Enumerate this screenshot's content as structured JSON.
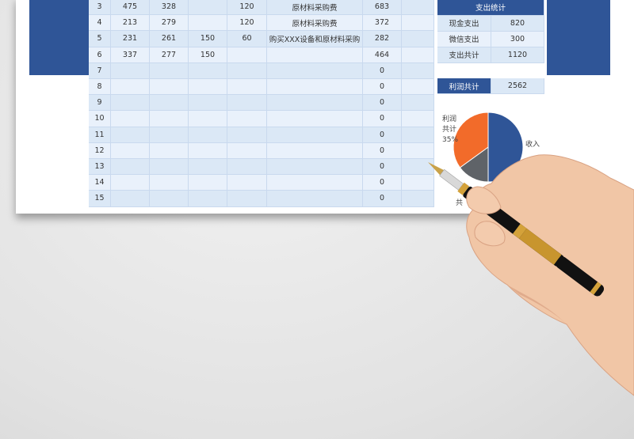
{
  "table": {
    "rows": [
      [
        3,
        475,
        328,
        null,
        120,
        "原材料采购费",
        683,
        null
      ],
      [
        4,
        213,
        279,
        null,
        120,
        "原材料采购费",
        372,
        null
      ],
      [
        5,
        231,
        261,
        150,
        60,
        "购买XXX设备和原材料采购",
        282,
        null
      ],
      [
        6,
        337,
        277,
        150,
        null,
        null,
        464,
        null
      ],
      [
        7,
        null,
        null,
        null,
        null,
        null,
        0,
        null
      ],
      [
        8,
        null,
        null,
        null,
        null,
        null,
        0,
        null
      ],
      [
        9,
        null,
        null,
        null,
        null,
        null,
        0,
        null
      ],
      [
        10,
        null,
        null,
        null,
        null,
        null,
        0,
        null
      ],
      [
        11,
        null,
        null,
        null,
        null,
        null,
        0,
        null
      ],
      [
        12,
        null,
        null,
        null,
        null,
        null,
        0,
        null
      ],
      [
        13,
        null,
        null,
        null,
        null,
        null,
        0,
        null
      ],
      [
        14,
        null,
        null,
        null,
        null,
        null,
        0,
        null
      ],
      [
        15,
        null,
        null,
        null,
        null,
        null,
        0,
        null
      ]
    ]
  },
  "expense_summary": {
    "title": "支出统计",
    "rows": [
      [
        "现金支出",
        820
      ],
      [
        "微信支出",
        300
      ],
      [
        "支出共计",
        1120
      ]
    ]
  },
  "profit_total": {
    "label": "利润共计",
    "value": 2562
  },
  "pie": {
    "slices": [
      {
        "label": "收入",
        "value": 50,
        "color": "#2f5597"
      },
      {
        "label": "共",
        "value": 15,
        "color": "#5f6368"
      },
      {
        "label": "利润共计",
        "value": 35,
        "value_label": "35%",
        "color": "#f26b2a"
      }
    ]
  }
}
